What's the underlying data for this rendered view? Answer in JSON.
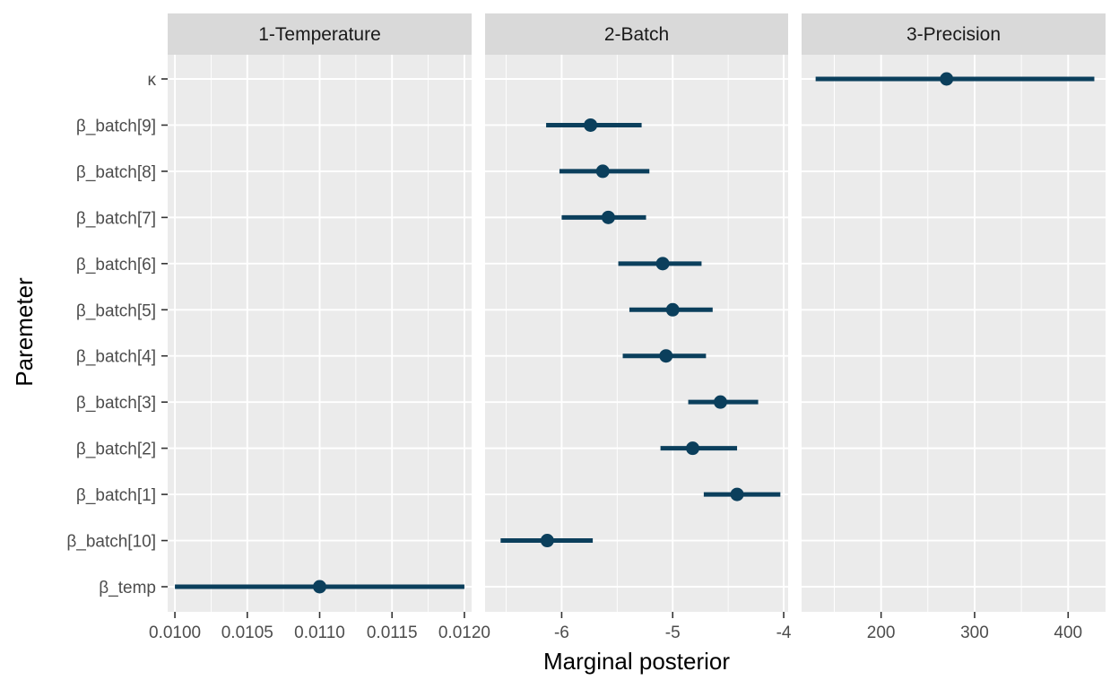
{
  "chart_data": {
    "type": "pointrange",
    "xlabel": "Marginal posterior",
    "ylabel": "Paremeter",
    "point_color": "#0b3f5c",
    "parameters": [
      "β_temp",
      "β_batch[10]",
      "β_batch[1]",
      "β_batch[2]",
      "β_batch[3]",
      "β_batch[4]",
      "β_batch[5]",
      "β_batch[6]",
      "β_batch[7]",
      "β_batch[8]",
      "β_batch[9]",
      "κ"
    ],
    "panels": [
      {
        "title": "1-Temperature",
        "xlim": [
          0.00995,
          0.01205
        ],
        "ticks": [
          0.01,
          0.0105,
          0.011,
          0.0115,
          0.012
        ],
        "tick_labels": [
          "0.0100",
          "0.0105",
          "0.0110",
          "0.0115",
          "0.0120"
        ],
        "points": [
          {
            "param": "β_temp",
            "low": 0.01,
            "mid": 0.011,
            "high": 0.012
          }
        ]
      },
      {
        "title": "2-Batch",
        "xlim": [
          -6.69,
          -3.96
        ],
        "ticks": [
          -6,
          -5,
          -4
        ],
        "tick_labels": [
          "-6",
          "-5",
          "-4"
        ],
        "points": [
          {
            "param": "β_batch[10]",
            "low": -6.55,
            "mid": -6.13,
            "high": -5.72
          },
          {
            "param": "β_batch[1]",
            "low": -4.72,
            "mid": -4.42,
            "high": -4.03
          },
          {
            "param": "β_batch[2]",
            "low": -5.11,
            "mid": -4.82,
            "high": -4.42
          },
          {
            "param": "β_batch[3]",
            "low": -4.86,
            "mid": -4.57,
            "high": -4.23
          },
          {
            "param": "β_batch[4]",
            "low": -5.45,
            "mid": -5.06,
            "high": -4.7
          },
          {
            "param": "β_batch[5]",
            "low": -5.39,
            "mid": -5.0,
            "high": -4.64
          },
          {
            "param": "β_batch[6]",
            "low": -5.49,
            "mid": -5.09,
            "high": -4.74
          },
          {
            "param": "β_batch[7]",
            "low": -6.0,
            "mid": -5.58,
            "high": -5.24
          },
          {
            "param": "β_batch[8]",
            "low": -6.02,
            "mid": -5.63,
            "high": -5.21
          },
          {
            "param": "β_batch[9]",
            "low": -6.14,
            "mid": -5.74,
            "high": -5.28
          }
        ]
      },
      {
        "title": "3-Precision",
        "xlim": [
          115,
          440
        ],
        "ticks": [
          200,
          300,
          400
        ],
        "tick_labels": [
          "200",
          "300",
          "400"
        ],
        "points": [
          {
            "param": "κ",
            "low": 130,
            "mid": 270,
            "high": 428
          }
        ]
      }
    ]
  }
}
